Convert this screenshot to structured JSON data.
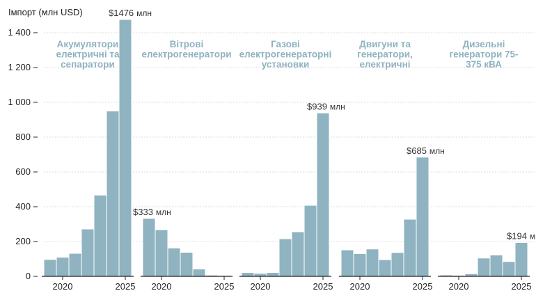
{
  "chart_data": {
    "type": "bar",
    "ylabel": "Імпорт (млн USD)",
    "ylim": [
      0,
      1500
    ],
    "yticks": [
      0,
      200,
      400,
      600,
      800,
      1000,
      1200,
      1400
    ],
    "ytick_labels": [
      "0",
      "200",
      "400",
      "600",
      "800",
      "1 000",
      "1 200",
      "1 400"
    ],
    "x": [
      2019,
      2020,
      2021,
      2022,
      2023,
      2024,
      2025
    ],
    "xticks": [
      2020,
      2025
    ],
    "xtick_labels": [
      "2020",
      "2025"
    ],
    "bar_color": "#8fb3c0",
    "panels": [
      {
        "title": [
          "Акумулятори",
          "електричні та",
          "сепаратори"
        ],
        "values": [
          97,
          110,
          132,
          272,
          467,
          950,
          1476
        ],
        "callout": {
          "value": "$1476",
          "unit": "млн",
          "index": 6
        }
      },
      {
        "title": [
          "Вітрові",
          "електрогенератори"
        ],
        "values": [
          333,
          268,
          163,
          138,
          42,
          7,
          5
        ],
        "callout": {
          "value": "$333",
          "unit": "млн",
          "index": 0
        }
      },
      {
        "title": [
          "Газові",
          "електрогенераторні",
          "установки"
        ],
        "values": [
          22,
          17,
          22,
          216,
          256,
          408,
          939
        ],
        "callout": {
          "value": "$939",
          "unit": "млн",
          "index": 6
        }
      },
      {
        "title": [
          "Двигуни та",
          "генератори,",
          "електричні"
        ],
        "values": [
          152,
          130,
          157,
          96,
          137,
          328,
          685
        ],
        "callout": {
          "value": "$685",
          "unit": "млн",
          "index": 6
        }
      },
      {
        "title": [
          "Дизельні",
          "генератори 75-",
          "375 кВА"
        ],
        "values": [
          8,
          6,
          15,
          105,
          123,
          85,
          194
        ],
        "callout": {
          "value": "$194",
          "unit": "м",
          "index": 6
        }
      }
    ]
  }
}
